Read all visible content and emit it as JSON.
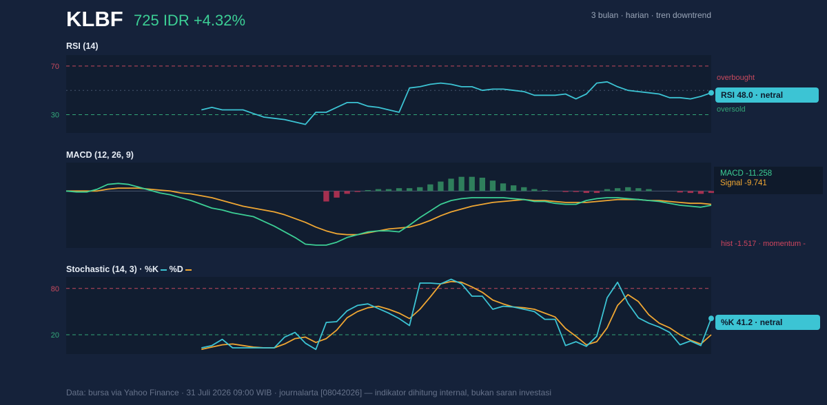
{
  "header": {
    "ticker": "KLBF",
    "price_change": "725 IDR +4.32%",
    "meta": "3 bulan · harian · tren downtrend"
  },
  "footer": "Data: bursa via Yahoo Finance · 31 Juli 2026 09:00 WIB · journalarta [08042026] — indikator dihitung internal, bukan saran investasi",
  "colors": {
    "rsi": "#3cc4d4",
    "macd": "#3ccf95",
    "signal": "#f0a733",
    "hist_pos": "#2f7f5c",
    "hist_neg": "#a63050",
    "overbought": "#c84a5e",
    "oversold": "#33a779"
  },
  "rsi_panel": {
    "title": "RSI (14)",
    "overbought_label": "overbought",
    "oversold_label": "oversold",
    "tag": "RSI 48.0 · netral"
  },
  "macd_panel": {
    "title": "MACD (12, 26, 9)",
    "macd_label": "MACD -11.258",
    "signal_label": "Signal -9.741",
    "hist_label": "hist -1.517 · momentum -"
  },
  "stoch_panel": {
    "title_prefix": "Stochastic (14, 3) · ",
    "k_label": "%K",
    "d_label": "%D",
    "tag": "%K 41.2 · netral"
  },
  "chart_data": [
    {
      "type": "line",
      "name": "RSI (14)",
      "ylim": [
        0,
        100
      ],
      "yticks": [
        30,
        70
      ],
      "reference_lines": [
        70,
        50,
        30
      ],
      "x": [
        13,
        14,
        15,
        16,
        17,
        18,
        19,
        20,
        21,
        22,
        23,
        24,
        25,
        26,
        27,
        28,
        29,
        30,
        31,
        32,
        33,
        34,
        35,
        36,
        37,
        38,
        39,
        40,
        41,
        42,
        43,
        44,
        45,
        46,
        47,
        48,
        49,
        50,
        51,
        52,
        53,
        54,
        55,
        56,
        57,
        58,
        59,
        60,
        61,
        62
      ],
      "series": [
        {
          "name": "RSI",
          "values": [
            34.0,
            36.0,
            34.0,
            34.0,
            34.0,
            31.0,
            28.0,
            27.0,
            26.0,
            24.0,
            22.0,
            32.0,
            32.0,
            36.0,
            40.0,
            40.0,
            37.0,
            36.0,
            34.0,
            32.0,
            52.0,
            53.0,
            55.0,
            56.0,
            55.0,
            53.0,
            53.0,
            50.0,
            51.0,
            51.0,
            50.0,
            49.0,
            46.0,
            46.0,
            46.0,
            47.0,
            43.0,
            47.0,
            56.0,
            57.0,
            53.0,
            50.0,
            49.0,
            48.0,
            47.0,
            44.0,
            44.0,
            43.0,
            45.0,
            48.0
          ]
        }
      ]
    },
    {
      "type": "line",
      "name": "MACD (12, 26, 9)",
      "ylim": [
        -60,
        30
      ],
      "reference_lines": [
        0
      ],
      "x": [
        0,
        1,
        2,
        3,
        4,
        5,
        6,
        7,
        8,
        9,
        10,
        11,
        12,
        13,
        14,
        15,
        16,
        17,
        18,
        19,
        20,
        21,
        22,
        23,
        24,
        25,
        26,
        27,
        28,
        29,
        30,
        31,
        32,
        33,
        34,
        35,
        36,
        37,
        38,
        39,
        40,
        41,
        42,
        43,
        44,
        45,
        46,
        47,
        48,
        49,
        50,
        51,
        52,
        53,
        54,
        55,
        56,
        57,
        58,
        59,
        60,
        61,
        62
      ],
      "series": [
        {
          "name": "MACD",
          "values": [
            0.0,
            -1.0,
            -1.0,
            2.0,
            7.0,
            8.0,
            7.0,
            4.0,
            1.0,
            -2.0,
            -4.0,
            -7.0,
            -10.0,
            -14.0,
            -18.0,
            -20.0,
            -23.0,
            -25.0,
            -27.0,
            -32.0,
            -37.0,
            -43.0,
            -49.0,
            -56.0,
            -57.0,
            -57.0,
            -54.0,
            -49.0,
            -46.0,
            -43.0,
            -42.0,
            -42.0,
            -43.0,
            -36.0,
            -28.0,
            -21.0,
            -14.0,
            -10.0,
            -8.0,
            -7.0,
            -7.0,
            -7.0,
            -7.0,
            -8.0,
            -9.0,
            -11.0,
            -11.0,
            -13.0,
            -14.0,
            -14.0,
            -10.0,
            -8.0,
            -7.0,
            -7.0,
            -8.0,
            -9.0,
            -10.0,
            -11.0,
            -13.0,
            -15.0,
            -16.0,
            -17.0,
            -15.0
          ]
        },
        {
          "name": "Signal",
          "values": [
            0.0,
            0.0,
            0.0,
            0.0,
            2.0,
            3.0,
            3.0,
            3.0,
            2.0,
            1.0,
            0.0,
            -2.0,
            -3.0,
            -5.0,
            -7.0,
            -10.0,
            -13.0,
            -16.0,
            -18.0,
            -20.0,
            -22.0,
            -25.0,
            -29.0,
            -33.0,
            -38.0,
            -42.0,
            -45.0,
            -46.0,
            -46.0,
            -44.0,
            -42.0,
            -40.0,
            -39.0,
            -38.0,
            -35.0,
            -31.0,
            -26.0,
            -22.0,
            -19.0,
            -16.0,
            -14.0,
            -12.0,
            -11.0,
            -10.0,
            -9.0,
            -10.0,
            -10.0,
            -11.0,
            -12.0,
            -12.0,
            -12.0,
            -11.0,
            -10.0,
            -9.0,
            -9.0,
            -9.0,
            -10.0,
            -10.0,
            -11.0,
            -12.0,
            -13.0,
            -13.0,
            -14.0
          ]
        },
        {
          "name": "hist",
          "values": [
            0,
            0,
            0,
            0,
            0,
            0,
            0,
            0,
            0,
            0,
            0,
            0,
            0,
            0,
            0,
            0,
            0,
            0,
            0,
            0,
            0,
            0,
            0,
            0,
            0,
            -11.0,
            -7.0,
            -3.0,
            -1.0,
            1.0,
            2.0,
            2.0,
            3.0,
            3.0,
            4.0,
            7.0,
            10.0,
            13.0,
            15.0,
            15.0,
            14.0,
            11.0,
            8.0,
            6.0,
            4.0,
            2.0,
            1.0,
            0,
            -1.0,
            -1.0,
            -2.0,
            -2.0,
            2.0,
            3.0,
            4.0,
            3.0,
            2.0,
            0,
            0,
            -1.5,
            -2.0,
            -3.0,
            -2.0
          ]
        }
      ]
    },
    {
      "type": "line",
      "name": "Stochastic (14, 3)",
      "ylim": [
        0,
        100
      ],
      "yticks": [
        20,
        80
      ],
      "reference_lines": [
        80,
        20
      ],
      "x": [
        13,
        14,
        15,
        16,
        17,
        18,
        19,
        20,
        21,
        22,
        23,
        24,
        25,
        26,
        27,
        28,
        29,
        30,
        31,
        32,
        33,
        34,
        35,
        36,
        37,
        38,
        39,
        40,
        41,
        42,
        43,
        44,
        45,
        46,
        47,
        48,
        49,
        50,
        51,
        52,
        53,
        54,
        55,
        56,
        57,
        58,
        59,
        60,
        61,
        62
      ],
      "series": [
        {
          "name": "%K",
          "values": [
            3.0,
            6.0,
            14.0,
            3.0,
            3.0,
            3.0,
            3.0,
            3.0,
            17.0,
            23.0,
            9.0,
            1.0,
            36.0,
            37.0,
            51.0,
            58.0,
            60.0,
            54.0,
            48.0,
            41.0,
            32.0,
            87.0,
            87.0,
            86.0,
            92.0,
            86.0,
            70.0,
            70.0,
            53.0,
            57.0,
            56.0,
            53.0,
            50.0,
            40.0,
            40.0,
            6.0,
            11.0,
            5.0,
            18.0,
            68.0,
            88.0,
            61.0,
            42.0,
            35.0,
            30.0,
            23.0,
            7.0,
            12.0,
            6.0,
            41.2
          ]
        },
        {
          "name": "%D",
          "values": [
            1.0,
            4.0,
            7.0,
            8.0,
            6.0,
            4.0,
            3.0,
            3.0,
            8.0,
            15.0,
            17.0,
            10.0,
            15.0,
            26.0,
            42.0,
            50.0,
            55.0,
            57.0,
            53.0,
            48.0,
            41.0,
            53.0,
            69.0,
            86.0,
            89.0,
            88.0,
            82.0,
            75.0,
            65.0,
            60.0,
            56.0,
            55.0,
            53.0,
            48.0,
            43.0,
            28.0,
            18.0,
            7.0,
            11.0,
            29.0,
            58.0,
            72.0,
            63.0,
            46.0,
            35.0,
            29.0,
            20.0,
            13.0,
            8.0,
            20.0
          ]
        }
      ]
    }
  ]
}
